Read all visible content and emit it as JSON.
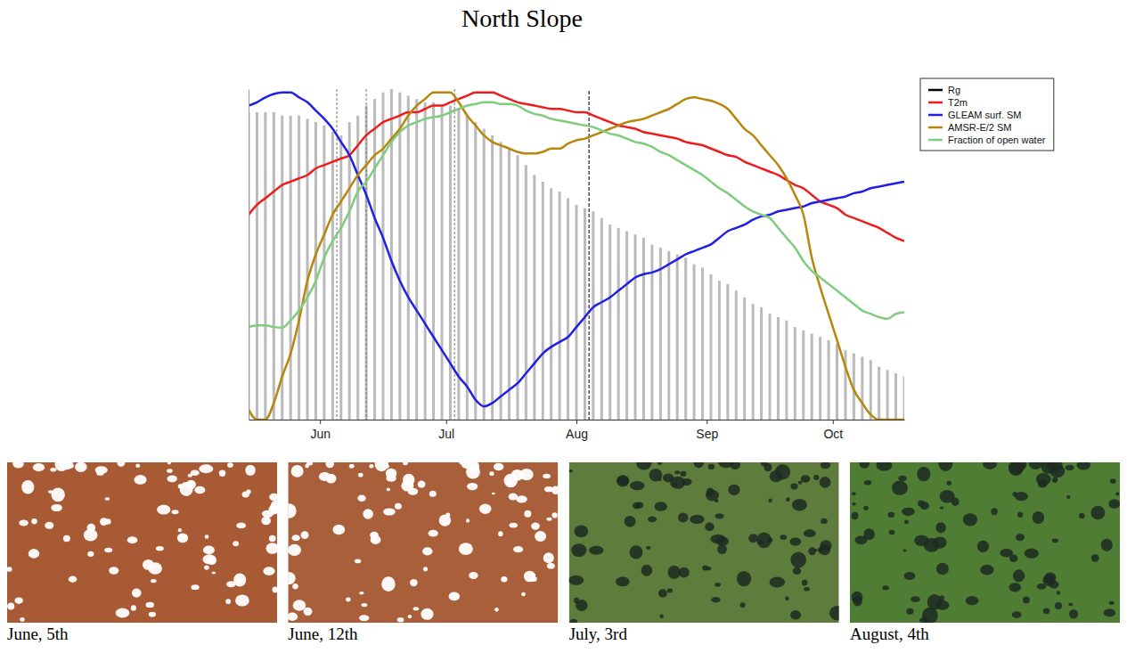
{
  "chart_data": {
    "type": "line",
    "title": "North Slope",
    "x": [
      135,
      137,
      139,
      141,
      143,
      145,
      147,
      149,
      151,
      153,
      155,
      157,
      159,
      161,
      163,
      165,
      167,
      169,
      171,
      173,
      175,
      177,
      179,
      181,
      183,
      185,
      187,
      189,
      191,
      193,
      195,
      197,
      199,
      201,
      203,
      205,
      207,
      209,
      211,
      213,
      215,
      217,
      219,
      221,
      223,
      225,
      227,
      229,
      231,
      233,
      235,
      237,
      239,
      241,
      243,
      245,
      247,
      249,
      251,
      253,
      255,
      257,
      259,
      261,
      263,
      265,
      267,
      269,
      271,
      273,
      275,
      277,
      279,
      281,
      283,
      285,
      287,
      289,
      291
    ],
    "xlim": [
      135,
      291
    ],
    "xticks": [
      {
        "value": 152,
        "label": "Jun"
      },
      {
        "value": 182,
        "label": "Jul"
      },
      {
        "value": 213,
        "label": "Aug"
      },
      {
        "value": 244,
        "label": "Sep"
      },
      {
        "value": 274,
        "label": "Oct"
      }
    ],
    "ylim": [
      0,
      1
    ],
    "tick_labels": "x",
    "legend": "right",
    "vlines": [
      156,
      163,
      184,
      216
    ],
    "series": [
      {
        "name": "Rg",
        "color": "#000000",
        "type": "bar",
        "values": [
          0.93,
          0.93,
          0.93,
          0.93,
          0.92,
          0.92,
          0.92,
          0.91,
          0.9,
          0.89,
          0.87,
          0.86,
          0.9,
          0.92,
          0.95,
          0.97,
          0.99,
          1.0,
          0.99,
          0.98,
          0.97,
          0.96,
          0.96,
          0.95,
          0.95,
          0.94,
          0.92,
          0.9,
          0.88,
          0.86,
          0.84,
          0.82,
          0.8,
          0.77,
          0.74,
          0.72,
          0.7,
          0.69,
          0.67,
          0.65,
          0.64,
          0.63,
          0.61,
          0.59,
          0.58,
          0.57,
          0.56,
          0.55,
          0.53,
          0.52,
          0.51,
          0.5,
          0.49,
          0.47,
          0.46,
          0.44,
          0.42,
          0.41,
          0.39,
          0.37,
          0.35,
          0.34,
          0.32,
          0.31,
          0.3,
          0.28,
          0.27,
          0.26,
          0.25,
          0.24,
          0.23,
          0.21,
          0.2,
          0.19,
          0.18,
          0.16,
          0.15,
          0.14,
          0.13
        ]
      },
      {
        "name": "T2m",
        "color": "#ee1c1c",
        "type": "line",
        "values": [
          0.62,
          0.65,
          0.67,
          0.69,
          0.71,
          0.72,
          0.73,
          0.74,
          0.76,
          0.77,
          0.78,
          0.79,
          0.8,
          0.83,
          0.86,
          0.88,
          0.9,
          0.91,
          0.92,
          0.93,
          0.93,
          0.94,
          0.95,
          0.95,
          0.96,
          0.97,
          0.98,
          0.99,
          0.99,
          0.99,
          0.98,
          0.97,
          0.96,
          0.955,
          0.95,
          0.945,
          0.94,
          0.94,
          0.935,
          0.93,
          0.93,
          0.92,
          0.91,
          0.9,
          0.89,
          0.885,
          0.88,
          0.87,
          0.865,
          0.86,
          0.855,
          0.85,
          0.84,
          0.835,
          0.83,
          0.82,
          0.81,
          0.8,
          0.795,
          0.78,
          0.77,
          0.76,
          0.75,
          0.74,
          0.725,
          0.71,
          0.7,
          0.68,
          0.66,
          0.65,
          0.64,
          0.62,
          0.61,
          0.6,
          0.59,
          0.58,
          0.565,
          0.55,
          0.54
        ]
      },
      {
        "name": "GLEAM surf. SM",
        "color": "#1f1fe6",
        "type": "line",
        "values": [
          0.95,
          0.96,
          0.975,
          0.985,
          0.99,
          0.99,
          0.975,
          0.96,
          0.935,
          0.91,
          0.88,
          0.84,
          0.8,
          0.74,
          0.68,
          0.61,
          0.55,
          0.48,
          0.42,
          0.37,
          0.33,
          0.29,
          0.25,
          0.21,
          0.17,
          0.13,
          0.1,
          0.06,
          0.04,
          0.05,
          0.07,
          0.09,
          0.11,
          0.14,
          0.17,
          0.2,
          0.22,
          0.235,
          0.25,
          0.28,
          0.31,
          0.34,
          0.355,
          0.37,
          0.39,
          0.41,
          0.43,
          0.44,
          0.445,
          0.455,
          0.47,
          0.485,
          0.5,
          0.51,
          0.52,
          0.53,
          0.55,
          0.57,
          0.58,
          0.59,
          0.605,
          0.615,
          0.62,
          0.63,
          0.635,
          0.64,
          0.645,
          0.655,
          0.66,
          0.665,
          0.67,
          0.675,
          0.685,
          0.69,
          0.7,
          0.705,
          0.71,
          0.715,
          0.72
        ]
      },
      {
        "name": "AMSR-E/2 SM",
        "color": "#b8860b",
        "type": "line",
        "values": [
          0.03,
          0,
          0,
          0.05,
          0.13,
          0.2,
          0.3,
          0.42,
          0.5,
          0.56,
          0.62,
          0.66,
          0.7,
          0.74,
          0.77,
          0.8,
          0.82,
          0.85,
          0.88,
          0.92,
          0.95,
          0.97,
          0.99,
          0.99,
          0.99,
          0.96,
          0.92,
          0.89,
          0.86,
          0.84,
          0.83,
          0.82,
          0.81,
          0.805,
          0.805,
          0.81,
          0.82,
          0.82,
          0.835,
          0.845,
          0.85,
          0.86,
          0.87,
          0.88,
          0.89,
          0.9,
          0.905,
          0.91,
          0.92,
          0.93,
          0.94,
          0.955,
          0.97,
          0.975,
          0.97,
          0.965,
          0.955,
          0.94,
          0.91,
          0.88,
          0.86,
          0.83,
          0.8,
          0.77,
          0.73,
          0.68,
          0.62,
          0.49,
          0.4,
          0.32,
          0.24,
          0.16,
          0.09,
          0.05,
          0.015,
          0,
          0,
          0,
          0
        ]
      },
      {
        "name": "Fraction of open water",
        "color": "#7fcc7f",
        "type": "line",
        "values": [
          0.28,
          0.285,
          0.285,
          0.28,
          0.278,
          0.3,
          0.33,
          0.37,
          0.42,
          0.49,
          0.54,
          0.58,
          0.63,
          0.69,
          0.72,
          0.76,
          0.8,
          0.84,
          0.87,
          0.89,
          0.9,
          0.91,
          0.915,
          0.92,
          0.93,
          0.94,
          0.95,
          0.955,
          0.96,
          0.96,
          0.955,
          0.955,
          0.95,
          0.935,
          0.925,
          0.92,
          0.91,
          0.905,
          0.9,
          0.895,
          0.89,
          0.885,
          0.875,
          0.865,
          0.86,
          0.85,
          0.84,
          0.835,
          0.825,
          0.81,
          0.8,
          0.785,
          0.77,
          0.755,
          0.74,
          0.72,
          0.7,
          0.685,
          0.665,
          0.645,
          0.63,
          0.62,
          0.61,
          0.58,
          0.55,
          0.52,
          0.48,
          0.45,
          0.43,
          0.41,
          0.39,
          0.37,
          0.35,
          0.33,
          0.32,
          0.31,
          0.305,
          0.32,
          0.325
        ]
      }
    ]
  },
  "images": [
    {
      "caption": "June, 5th",
      "color": "#a85a35"
    },
    {
      "caption": "June, 12th",
      "color": "#a9603a"
    },
    {
      "caption": "July, 3rd",
      "color": "#5e7d3c"
    },
    {
      "caption": "August, 4th",
      "color": "#4f7d33"
    }
  ]
}
